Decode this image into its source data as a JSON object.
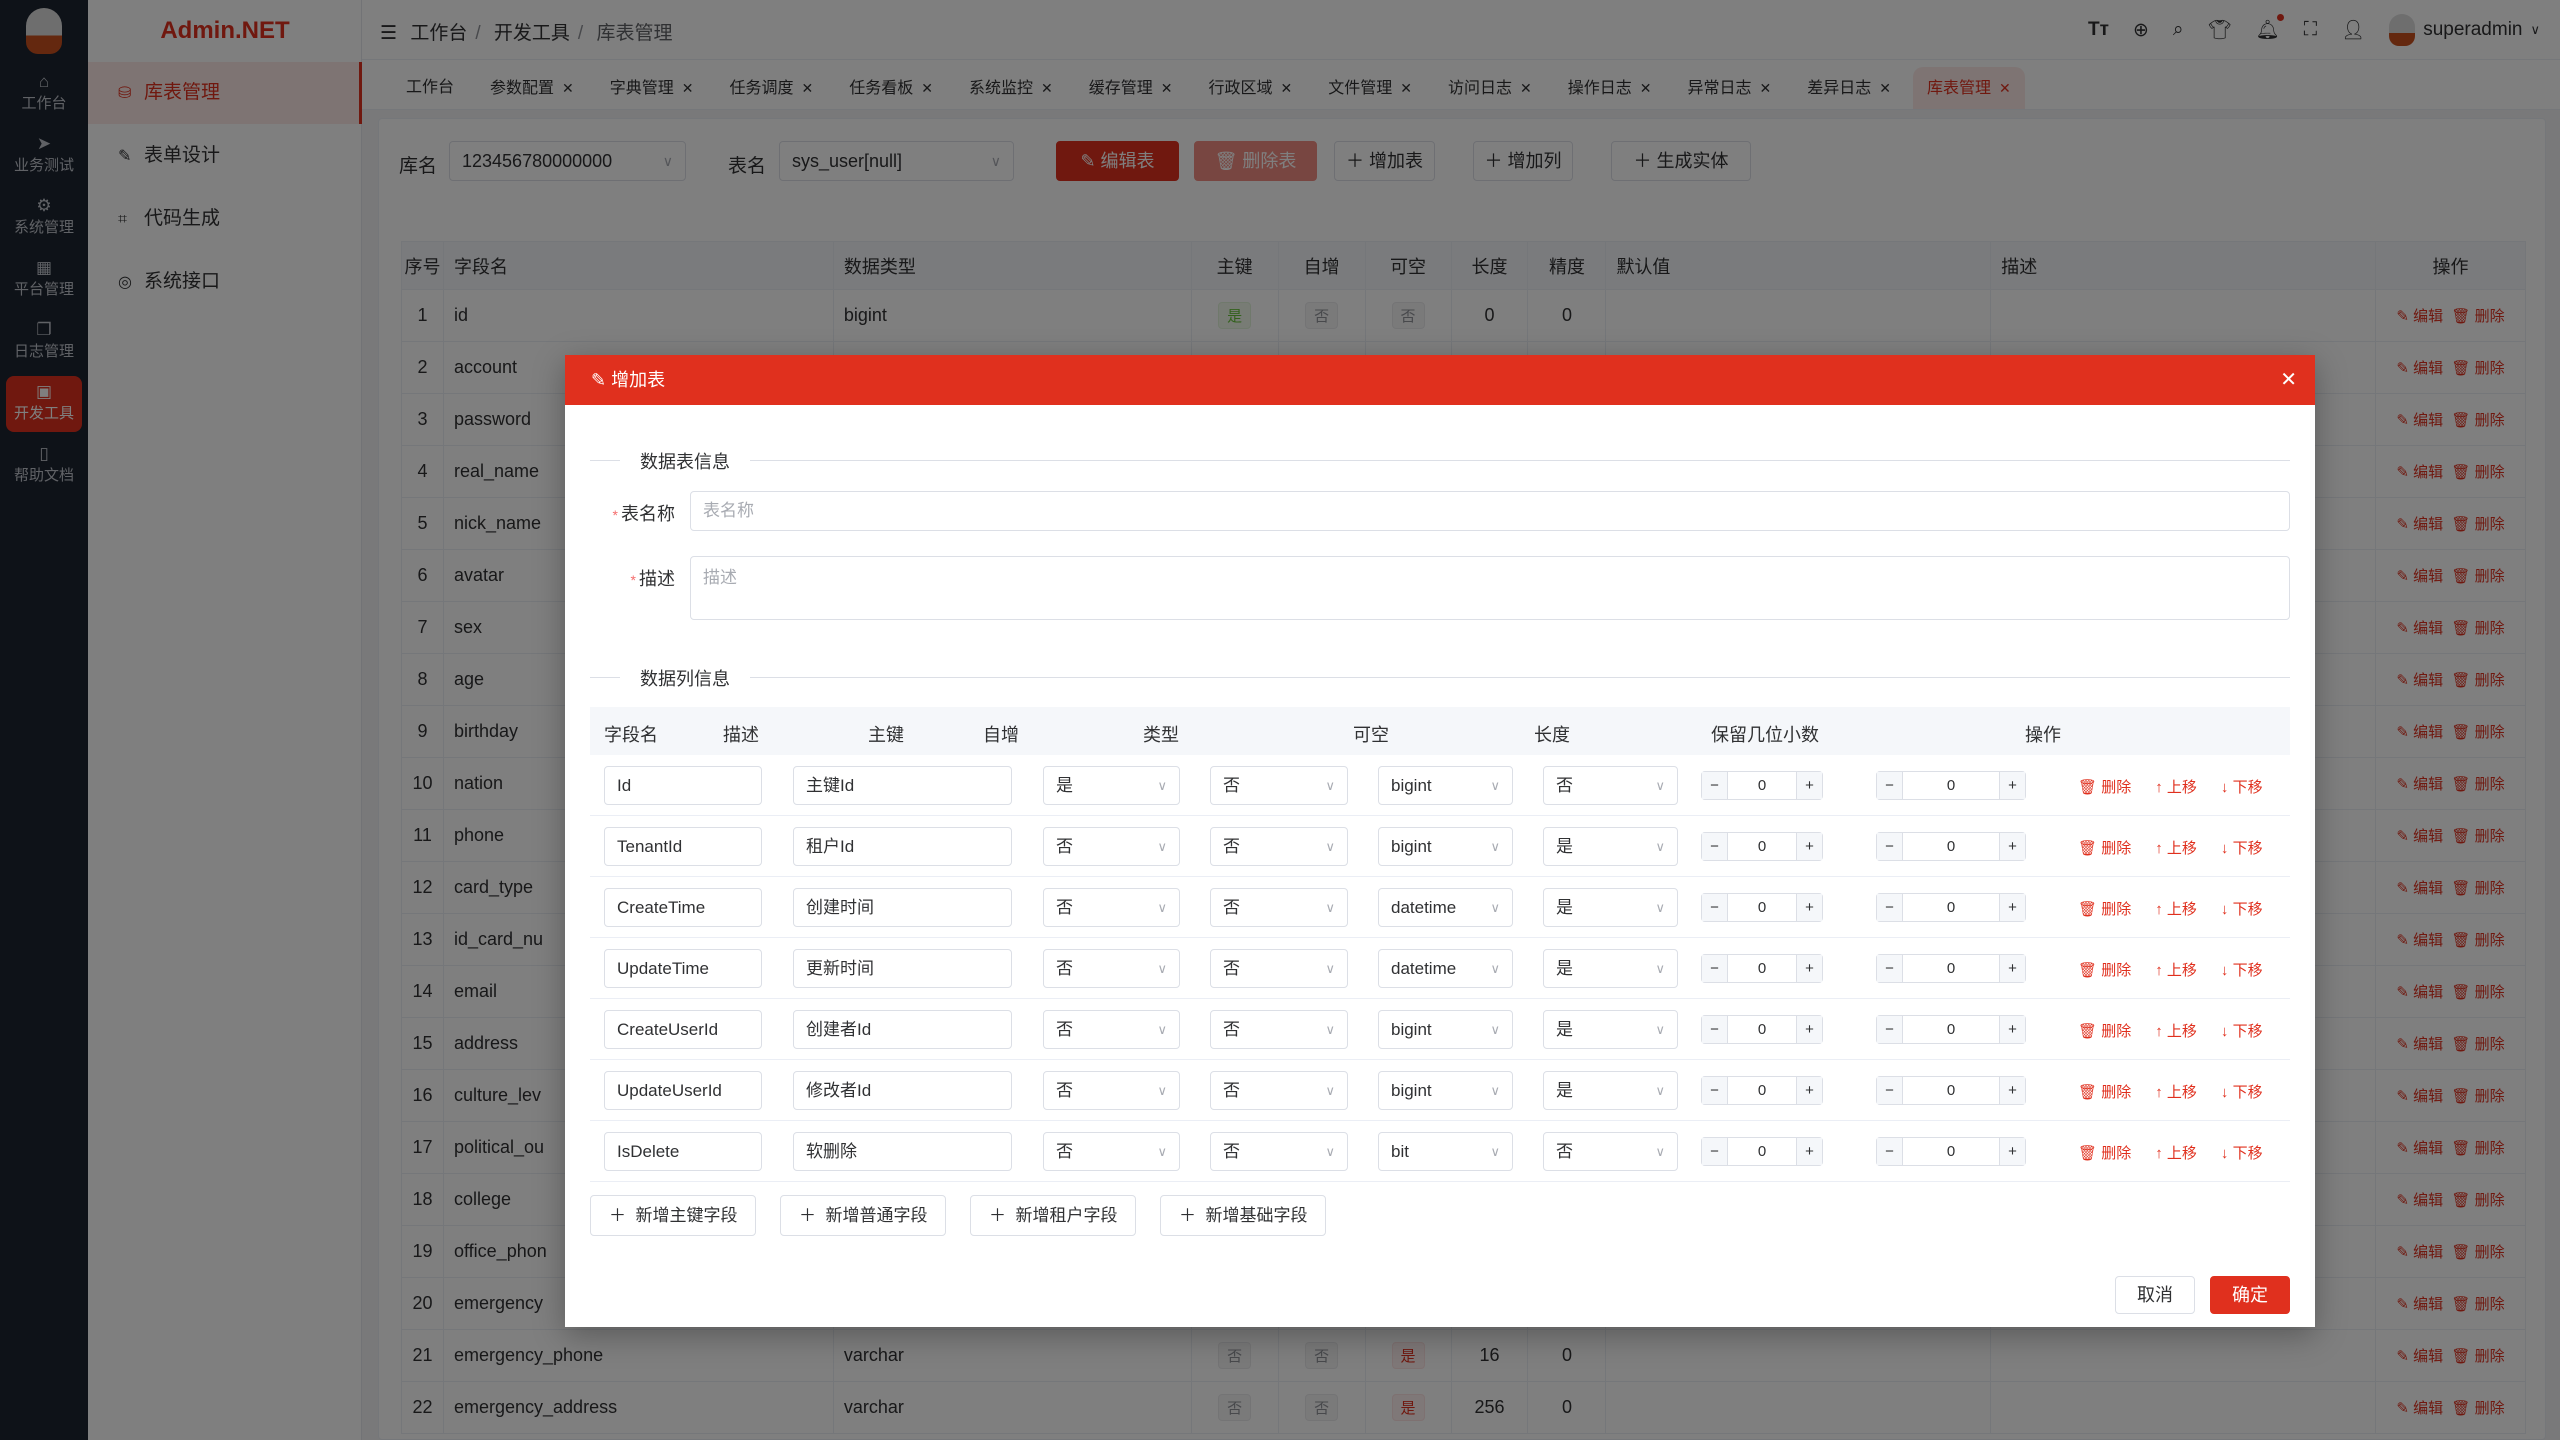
{
  "rail": {
    "items": [
      {
        "label": "工作台",
        "icon": "home-icon"
      },
      {
        "label": "业务测试",
        "icon": "send-icon"
      },
      {
        "label": "系统管理",
        "icon": "gear-icon"
      },
      {
        "label": "平台管理",
        "icon": "grid-icon"
      },
      {
        "label": "日志管理",
        "icon": "copy-icon"
      },
      {
        "label": "开发工具",
        "icon": "cpu-icon",
        "active": true
      },
      {
        "label": "帮助文档",
        "icon": "notebook-icon"
      }
    ]
  },
  "submenu": {
    "brand": "Admin.NET",
    "items": [
      {
        "label": "库表管理",
        "icon": "database-icon",
        "active": true
      },
      {
        "label": "表单设计",
        "icon": "edit-icon"
      },
      {
        "label": "代码生成",
        "icon": "crop-icon"
      },
      {
        "label": "系统接口",
        "icon": "lifebuoy-icon"
      }
    ]
  },
  "header": {
    "breadcrumb": [
      "工作台",
      "开发工具",
      "库表管理"
    ],
    "user": "superadmin"
  },
  "tabs": [
    {
      "label": "工作台",
      "closable": false
    },
    {
      "label": "参数配置",
      "closable": true
    },
    {
      "label": "字典管理",
      "closable": true
    },
    {
      "label": "任务调度",
      "closable": true
    },
    {
      "label": "任务看板",
      "closable": true
    },
    {
      "label": "系统监控",
      "closable": true
    },
    {
      "label": "缓存管理",
      "closable": true
    },
    {
      "label": "行政区域",
      "closable": true
    },
    {
      "label": "文件管理",
      "closable": true
    },
    {
      "label": "访问日志",
      "closable": true
    },
    {
      "label": "操作日志",
      "closable": true
    },
    {
      "label": "异常日志",
      "closable": true
    },
    {
      "label": "差异日志",
      "closable": true
    },
    {
      "label": "库表管理",
      "closable": true,
      "active": true
    }
  ],
  "toolbar": {
    "db_label": "库名",
    "db_value": "123456780000000",
    "table_label": "表名",
    "table_value": "sys_user[null]",
    "edit_table": "编辑表",
    "delete_table": "删除表",
    "add_table": "增加表",
    "add_column": "增加列",
    "gen_entity": "生成实体"
  },
  "table": {
    "headers": [
      "序号",
      "字段名",
      "数据类型",
      "主键",
      "自增",
      "可空",
      "长度",
      "精度",
      "默认值",
      "描述",
      "操作"
    ],
    "edit_label": "编辑",
    "delete_label": "删除",
    "rows": [
      {
        "no": "1",
        "name": "id",
        "type": "bigint",
        "pk": "是",
        "inc": "否",
        "null": "否",
        "len": "0",
        "prec": "0"
      },
      {
        "no": "2",
        "name": "account"
      },
      {
        "no": "3",
        "name": "password"
      },
      {
        "no": "4",
        "name": "real_name"
      },
      {
        "no": "5",
        "name": "nick_name"
      },
      {
        "no": "6",
        "name": "avatar"
      },
      {
        "no": "7",
        "name": "sex"
      },
      {
        "no": "8",
        "name": "age"
      },
      {
        "no": "9",
        "name": "birthday"
      },
      {
        "no": "10",
        "name": "nation"
      },
      {
        "no": "11",
        "name": "phone"
      },
      {
        "no": "12",
        "name": "card_type"
      },
      {
        "no": "13",
        "name": "id_card_nu"
      },
      {
        "no": "14",
        "name": "email"
      },
      {
        "no": "15",
        "name": "address"
      },
      {
        "no": "16",
        "name": "culture_lev"
      },
      {
        "no": "17",
        "name": "political_ou"
      },
      {
        "no": "18",
        "name": "college"
      },
      {
        "no": "19",
        "name": "office_phon"
      },
      {
        "no": "20",
        "name": "emergency"
      },
      {
        "no": "21",
        "name": "emergency_phone",
        "type": "varchar",
        "pk": "否",
        "inc": "否",
        "null": "是",
        "len": "16",
        "prec": "0"
      },
      {
        "no": "22",
        "name": "emergency_address",
        "type": "varchar",
        "pk": "否",
        "inc": "否",
        "null": "是",
        "len": "256",
        "prec": "0"
      }
    ]
  },
  "dialog": {
    "title": "增加表",
    "section_table": "数据表信息",
    "section_columns": "数据列信息",
    "name_label": "表名称",
    "name_placeholder": "表名称",
    "desc_label": "描述",
    "desc_placeholder": "描述",
    "col_headers": [
      "字段名",
      "描述",
      "主键",
      "自增",
      "类型",
      "可空",
      "长度",
      "保留几位小数",
      "操作"
    ],
    "op_delete": "删除",
    "op_up": "上移",
    "op_down": "下移",
    "columns": [
      {
        "name": "Id",
        "desc": "主键Id",
        "pk": "是",
        "inc": "否",
        "type": "bigint",
        "null": "否",
        "len": "0",
        "dec": "0"
      },
      {
        "name": "TenantId",
        "desc": "租户Id",
        "pk": "否",
        "inc": "否",
        "type": "bigint",
        "null": "是",
        "len": "0",
        "dec": "0"
      },
      {
        "name": "CreateTime",
        "desc": "创建时间",
        "pk": "否",
        "inc": "否",
        "type": "datetime",
        "null": "是",
        "len": "0",
        "dec": "0"
      },
      {
        "name": "UpdateTime",
        "desc": "更新时间",
        "pk": "否",
        "inc": "否",
        "type": "datetime",
        "null": "是",
        "len": "0",
        "dec": "0"
      },
      {
        "name": "CreateUserId",
        "desc": "创建者Id",
        "pk": "否",
        "inc": "否",
        "type": "bigint",
        "null": "是",
        "len": "0",
        "dec": "0"
      },
      {
        "name": "UpdateUserId",
        "desc": "修改者Id",
        "pk": "否",
        "inc": "否",
        "type": "bigint",
        "null": "是",
        "len": "0",
        "dec": "0"
      },
      {
        "name": "IsDelete",
        "desc": "软删除",
        "pk": "否",
        "inc": "否",
        "type": "bit",
        "null": "否",
        "len": "0",
        "dec": "0"
      }
    ],
    "add_buttons": [
      "新增主键字段",
      "新增普通字段",
      "新增租户字段",
      "新增基础字段"
    ],
    "cancel": "取消",
    "confirm": "确定"
  },
  "colors": {
    "accent": "#e0301e",
    "sidebar": "#1d2430"
  }
}
